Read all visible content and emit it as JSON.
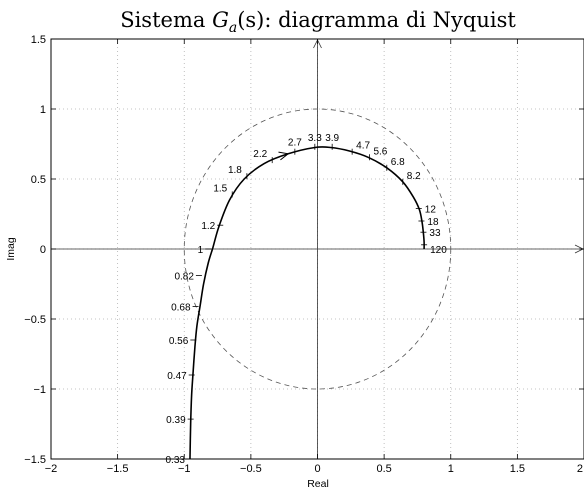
{
  "chart_data": {
    "type": "line",
    "title": "Sistema G_a(s): diagramma di Nyquist",
    "title_parts": {
      "prefix": "Sistema ",
      "G": "G",
      "sub": "a",
      "suffix": "(s): diagramma di Nyquist"
    },
    "xlabel": "Real",
    "ylabel": "Imag",
    "xlim": [
      -2,
      2
    ],
    "ylim": [
      -1.5,
      1.5
    ],
    "xticks": [
      -2,
      -1.5,
      -1,
      -0.5,
      0,
      0.5,
      1,
      1.5,
      2
    ],
    "xtick_labels": [
      "−2",
      "−1.5",
      "−1",
      "−0.5",
      "0",
      "0.5",
      "1",
      "1.5",
      "2"
    ],
    "yticks": [
      -1.5,
      -1,
      -0.5,
      0,
      0.5,
      1,
      1.5
    ],
    "ytick_labels": [
      "−1.5",
      "−1",
      "−0.5",
      "0",
      "0.5",
      "1",
      "1.5"
    ],
    "grid": true,
    "unit_circle": {
      "center": [
        0,
        0
      ],
      "radius": 1,
      "style": "dashed"
    },
    "colors": {
      "curve": "#000000",
      "grid": "#b0b0b0",
      "circle": "#555555"
    },
    "series": [
      {
        "points": [
          [
            -0.957,
            -1.5
          ],
          [
            -0.952,
            -1.25
          ],
          [
            -0.945,
            -1.05
          ],
          [
            -0.935,
            -0.9
          ],
          [
            -0.92,
            -0.7
          ],
          [
            -0.905,
            -0.55
          ],
          [
            -0.88,
            -0.4
          ],
          [
            -0.855,
            -0.25
          ],
          [
            -0.82,
            -0.1
          ],
          [
            -0.785,
            0.01
          ],
          [
            -0.74,
            0.16
          ],
          [
            -0.66,
            0.35
          ],
          [
            -0.55,
            0.5
          ],
          [
            -0.4,
            0.61
          ],
          [
            -0.22,
            0.68
          ],
          [
            -0.02,
            0.725
          ],
          [
            0.1,
            0.725
          ],
          [
            0.24,
            0.7
          ],
          [
            0.38,
            0.655
          ],
          [
            0.52,
            0.58
          ],
          [
            0.64,
            0.48
          ],
          [
            0.72,
            0.37
          ],
          [
            0.765,
            0.28
          ],
          [
            0.785,
            0.19
          ],
          [
            0.795,
            0.11
          ],
          [
            0.8,
            0.05
          ],
          [
            0.8,
            0.0
          ]
        ]
      }
    ],
    "frequency_labels": [
      {
        "text": "0.33",
        "x": -0.957,
        "y": -1.5
      },
      {
        "text": "0.39",
        "x": -0.952,
        "y": -1.215
      },
      {
        "text": "0.47",
        "x": -0.944,
        "y": -0.9
      },
      {
        "text": "0.56",
        "x": -0.932,
        "y": -0.65
      },
      {
        "text": "0.68",
        "x": -0.915,
        "y": -0.41
      },
      {
        "text": "0.82",
        "x": -0.89,
        "y": -0.19
      },
      {
        "text": "1",
        "x": -0.82,
        "y": 0.0
      },
      {
        "text": "1.2",
        "x": -0.73,
        "y": 0.17
      },
      {
        "text": "1.5",
        "x": -0.64,
        "y": 0.39
      },
      {
        "text": "1.8",
        "x": -0.53,
        "y": 0.52
      },
      {
        "text": "2.2",
        "x": -0.34,
        "y": 0.635
      },
      {
        "text": "2.7",
        "x": -0.17,
        "y": 0.695
      },
      {
        "text": "3.3",
        "x": -0.02,
        "y": 0.73
      },
      {
        "text": "3.9",
        "x": 0.11,
        "y": 0.73
      },
      {
        "text": "4.7",
        "x": 0.26,
        "y": 0.695
      },
      {
        "text": "5.6",
        "x": 0.39,
        "y": 0.655
      },
      {
        "text": "6.8",
        "x": 0.52,
        "y": 0.58
      },
      {
        "text": "8.2",
        "x": 0.64,
        "y": 0.48
      },
      {
        "text": "12",
        "x": 0.76,
        "y": 0.29
      },
      {
        "text": "18",
        "x": 0.78,
        "y": 0.2
      },
      {
        "text": "33",
        "x": 0.795,
        "y": 0.12
      },
      {
        "text": "120",
        "x": 0.8,
        "y": 0.03
      }
    ],
    "arrow": {
      "at": [
        -0.22,
        0.68
      ],
      "direction": [
        1,
        0.25
      ]
    }
  }
}
